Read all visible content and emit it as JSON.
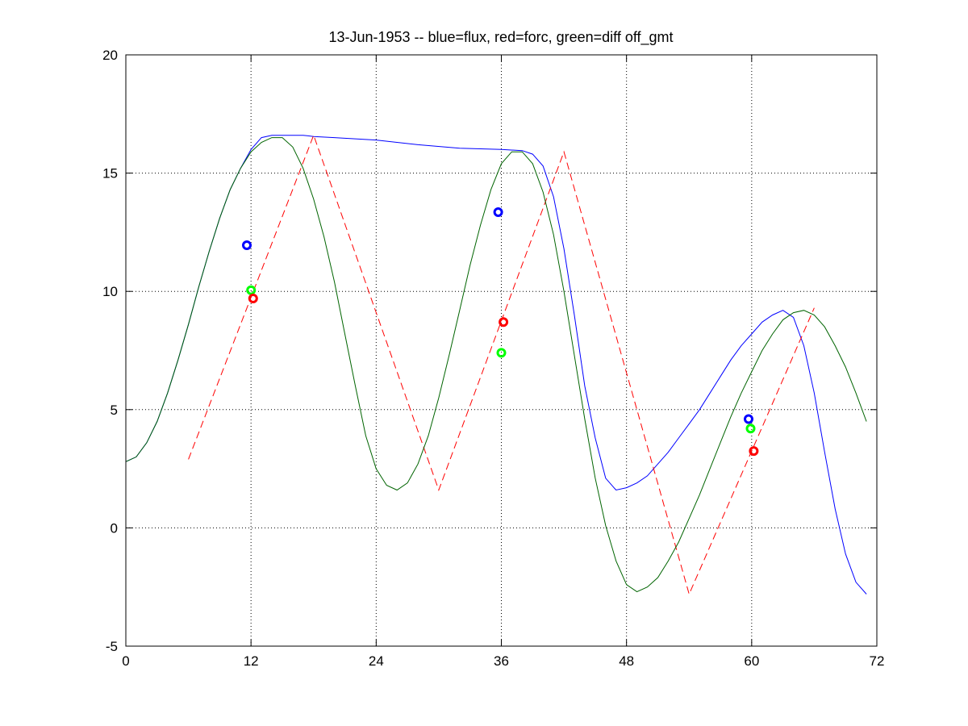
{
  "chart_data": {
    "type": "line",
    "title": "13-Jun-1953 -- blue=flux, red=forc, green=diff off_gmt",
    "xlabel": "",
    "ylabel": "",
    "xlim": [
      0,
      72
    ],
    "ylim": [
      -5,
      20
    ],
    "xticks": [
      0,
      12,
      24,
      36,
      48,
      60,
      72
    ],
    "yticks": [
      -5,
      0,
      5,
      10,
      15,
      20
    ],
    "grid": true,
    "series": [
      {
        "color": "#0000ff",
        "style": "solid",
        "x": [
          0,
          1,
          2,
          3,
          4,
          5,
          6,
          7,
          8,
          9,
          10,
          11,
          12,
          13,
          14,
          15,
          16,
          17,
          18,
          20,
          24,
          28,
          32,
          36,
          38,
          39,
          40,
          41,
          42,
          43,
          44,
          45,
          46,
          47,
          48,
          49,
          50,
          51,
          52,
          53,
          54,
          55,
          56,
          57,
          58,
          59,
          60,
          61,
          62,
          63,
          64,
          65,
          66,
          67,
          68,
          69,
          70,
          71
        ],
        "y": [
          2.8,
          3.0,
          3.6,
          4.5,
          5.7,
          7.1,
          8.6,
          10.2,
          11.7,
          13.1,
          14.3,
          15.2,
          16.0,
          16.5,
          16.6,
          16.6,
          16.6,
          16.6,
          16.55,
          16.5,
          16.4,
          16.2,
          16.05,
          16.0,
          15.95,
          15.8,
          15.3,
          14.0,
          11.8,
          9.0,
          6.0,
          3.8,
          2.1,
          1.6,
          1.7,
          1.9,
          2.2,
          2.7,
          3.2,
          3.8,
          4.4,
          5.0,
          5.7,
          6.4,
          7.1,
          7.7,
          8.2,
          8.7,
          9.0,
          9.2,
          8.9,
          7.7,
          5.7,
          3.2,
          0.8,
          -1.1,
          -2.3,
          -2.8
        ]
      },
      {
        "color": "#ff0000",
        "style": "dashed",
        "x": [
          6,
          18,
          30,
          42,
          54,
          66
        ],
        "y": [
          2.9,
          16.6,
          1.6,
          15.9,
          -2.8,
          9.3
        ]
      },
      {
        "color": "#006400",
        "style": "solid",
        "x": [
          0,
          1,
          2,
          3,
          4,
          5,
          6,
          7,
          8,
          9,
          10,
          11,
          12,
          13,
          14,
          15,
          16,
          17,
          18,
          19,
          20,
          21,
          22,
          23,
          24,
          25,
          26,
          27,
          28,
          29,
          30,
          31,
          32,
          33,
          34,
          35,
          36,
          37,
          38,
          39,
          40,
          41,
          42,
          43,
          44,
          45,
          46,
          47,
          48,
          49,
          50,
          51,
          52,
          53,
          54,
          55,
          56,
          57,
          58,
          59,
          60,
          61,
          62,
          63,
          64,
          65,
          66,
          67,
          68,
          69,
          70,
          71
        ],
        "y": [
          2.8,
          3.0,
          3.6,
          4.5,
          5.7,
          7.1,
          8.6,
          10.2,
          11.7,
          13.1,
          14.3,
          15.2,
          15.9,
          16.3,
          16.5,
          16.5,
          16.1,
          15.2,
          13.9,
          12.3,
          10.4,
          8.2,
          6.0,
          3.9,
          2.5,
          1.8,
          1.6,
          1.9,
          2.7,
          3.9,
          5.5,
          7.3,
          9.2,
          11.1,
          12.8,
          14.3,
          15.4,
          15.9,
          15.9,
          15.4,
          14.2,
          12.4,
          10.0,
          7.3,
          4.6,
          2.1,
          0.1,
          -1.4,
          -2.4,
          -2.7,
          -2.5,
          -2.1,
          -1.4,
          -0.6,
          0.4,
          1.4,
          2.5,
          3.6,
          4.7,
          5.7,
          6.6,
          7.5,
          8.2,
          8.8,
          9.1,
          9.2,
          9.0,
          8.5,
          7.7,
          6.8,
          5.7,
          4.5
        ]
      }
    ],
    "markers": [
      {
        "x": 11.6,
        "y": 11.95,
        "color": "#0000ff"
      },
      {
        "x": 12.0,
        "y": 10.05,
        "color": "#00ff00"
      },
      {
        "x": 12.2,
        "y": 9.7,
        "color": "#ff0000"
      },
      {
        "x": 35.7,
        "y": 13.35,
        "color": "#0000ff"
      },
      {
        "x": 36.2,
        "y": 8.7,
        "color": "#ff0000"
      },
      {
        "x": 36.0,
        "y": 7.4,
        "color": "#00ff00"
      },
      {
        "x": 59.7,
        "y": 4.6,
        "color": "#0000ff"
      },
      {
        "x": 59.9,
        "y": 4.2,
        "color": "#00ff00"
      },
      {
        "x": 60.2,
        "y": 3.25,
        "color": "#ff0000"
      }
    ]
  }
}
